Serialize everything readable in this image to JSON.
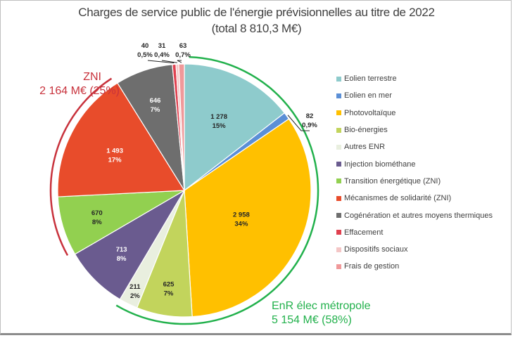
{
  "chart_data": {
    "type": "pie",
    "title": "Charges de service public de l'énergie prévisionnelles au titre de 2022",
    "subtitle": "(total 8 810,3 M€)",
    "start_angle": "top, clockwise",
    "legend_position": "right",
    "slices": [
      {
        "label": "Eolien terrestre",
        "value": 1278,
        "value_label": "1 278",
        "pct_label": "15%",
        "color": "#8ecbcc",
        "label_color": "#262626"
      },
      {
        "label": "Eolien en mer",
        "value": 82,
        "value_label": "82",
        "pct_label": "0,9%",
        "color": "#5b8fd6",
        "label_color": "#262626",
        "outside": true
      },
      {
        "label": "Photovoltaïque",
        "value": 2958,
        "value_label": "2 958",
        "pct_label": "34%",
        "color": "#ffc000",
        "label_color": "#262626"
      },
      {
        "label": "Bio-énergies",
        "value": 625,
        "value_label": "625",
        "pct_label": "7%",
        "color": "#c2d45c",
        "label_color": "#262626"
      },
      {
        "label": "Autres ENR",
        "value": 211,
        "value_label": "211",
        "pct_label": "2%",
        "color": "#e9efdf",
        "label_color": "#262626"
      },
      {
        "label": "Injection biométhane",
        "value": 713,
        "value_label": "713",
        "pct_label": "8%",
        "color": "#6a5b8f",
        "label_color": "#ffffff"
      },
      {
        "label": "Transition énergétique (ZNI)",
        "value": 670,
        "value_label": "670",
        "pct_label": "8%",
        "color": "#92d050",
        "label_color": "#262626"
      },
      {
        "label": "Mécanismes de solidarité (ZNI)",
        "value": 1493,
        "value_label": "1 493",
        "pct_label": "17%",
        "color": "#e84c2b",
        "label_color": "#ffffff"
      },
      {
        "label": "Cogénération et autres moyens thermiques",
        "value": 646,
        "value_label": "646",
        "pct_label": "7%",
        "color": "#6e6e6e",
        "label_color": "#ffffff"
      },
      {
        "label": "Effacement",
        "value": 40,
        "value_label": "40",
        "pct_label": "0,5%",
        "color": "#e0404f",
        "label_color": "#262626",
        "outside": true
      },
      {
        "label": "Dispositifs sociaux",
        "value": 31,
        "value_label": "31",
        "pct_label": "0,4%",
        "color": "#f4c6c6",
        "label_color": "#262626",
        "outside": true
      },
      {
        "label": "Frais de gestion",
        "value": 63,
        "value_label": "63",
        "pct_label": "0,7%",
        "color": "#f0999a",
        "label_color": "#262626",
        "outside": true
      }
    ],
    "groups": [
      {
        "name": "ZNI",
        "summary": "2 164 M€ (25%)",
        "color": "#c8323c",
        "from_slice": 6,
        "to_slice": 7
      },
      {
        "name": "EnR élec métropole",
        "summary": "5 154 M€ (58%)",
        "color": "#22b14c",
        "from_slice": 0,
        "to_slice": 4
      }
    ]
  }
}
